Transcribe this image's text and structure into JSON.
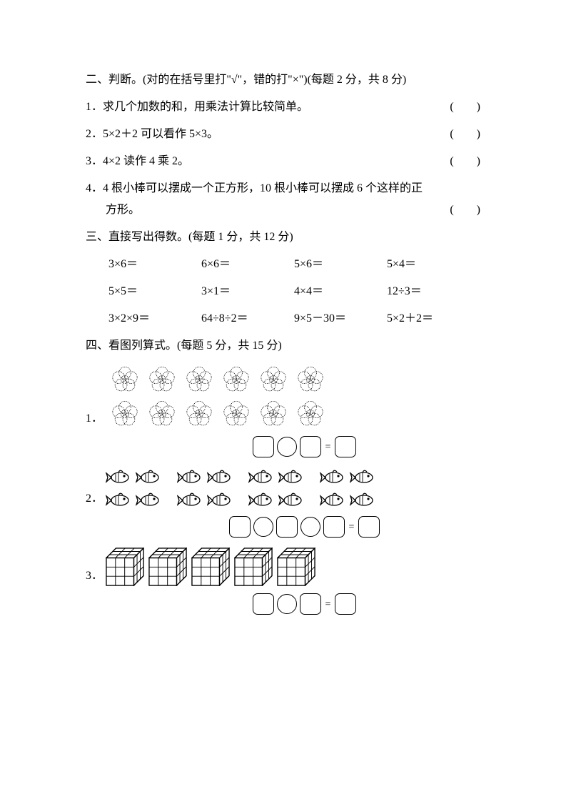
{
  "section2": {
    "header": "二、判断。(对的在括号里打\"√\"，错的打\"×\")(每题 2 分，共 8 分)",
    "paren": "(　　)",
    "q1": "1．求几个加数的和，用乘法计算比较简单。",
    "q2": "2．5×2＋2 可以看作 5×3。",
    "q3": "3．4×2 读作 4 乘 2。",
    "q4a": "4．4 根小棒可以摆成一个正方形，10 根小棒可以摆成 6 个这样的正",
    "q4b": "方形。"
  },
  "section3": {
    "header": "三、直接写出得数。(每题 1 分，共 12 分)",
    "rows": [
      [
        "3×6＝",
        "6×6＝",
        "5×6＝",
        "5×4＝"
      ],
      [
        "5×5＝",
        "3×1＝",
        "4×4＝",
        "12÷3＝"
      ],
      [
        "3×2×9＝",
        "64÷8÷2＝",
        "9×5－30＝",
        "5×2＋2＝"
      ]
    ]
  },
  "section4": {
    "header": "四、看图列算式。(每题 5 分，共 15 分)",
    "q1_num": "1．",
    "q2_num": "2．",
    "q3_num": "3．",
    "q1": {
      "type": "grid",
      "rows": 2,
      "cols": 6,
      "item": "flower",
      "equation_boxes": 3
    },
    "q2": {
      "type": "groups",
      "rows": 2,
      "groups_per_row": 4,
      "per_group": 2,
      "item": "fish",
      "equation_boxes": 4
    },
    "q3": {
      "type": "row",
      "count": 5,
      "item": "cube",
      "equation_boxes": 3
    },
    "equals": "="
  },
  "style": {
    "flower_size": 42,
    "fish_w": 36,
    "fish_h": 26,
    "cube_size": 54,
    "stroke": "#000000",
    "dotted_fill": "none"
  }
}
